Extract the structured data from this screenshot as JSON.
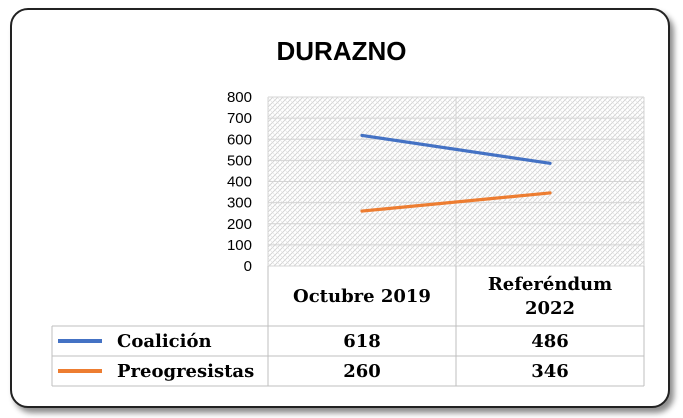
{
  "chart_data": {
    "type": "line",
    "title": "DURAZNO",
    "categories": [
      "Octubre 2019",
      "Referéndum 2022"
    ],
    "category_lines": [
      [
        "Octubre 2019"
      ],
      [
        "Referéndum",
        "2022"
      ]
    ],
    "series": [
      {
        "name": "Coalición",
        "values": [
          618,
          486
        ],
        "color": "#4472C4",
        "labels": [
          "618",
          "486"
        ]
      },
      {
        "name": "Preogresistas",
        "values": [
          260,
          346
        ],
        "color": "#ED7D31",
        "labels": [
          "260",
          "346"
        ]
      }
    ],
    "ylim": [
      0,
      800
    ],
    "yticks": [
      "0",
      "100",
      "200",
      "300",
      "400",
      "500",
      "600",
      "700",
      "800"
    ],
    "grid": true,
    "legend": "table-bottom"
  }
}
